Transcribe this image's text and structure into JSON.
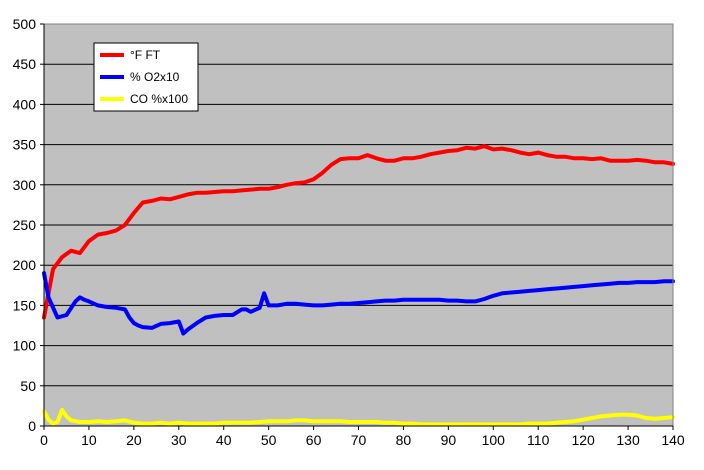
{
  "chart_data": {
    "type": "line",
    "title": "",
    "xlabel": "",
    "ylabel": "",
    "xlim": [
      0,
      140
    ],
    "ylim": [
      0,
      500
    ],
    "x_ticks": [
      0,
      10,
      20,
      30,
      40,
      50,
      60,
      70,
      80,
      90,
      100,
      110,
      120,
      130,
      140
    ],
    "y_ticks": [
      0,
      50,
      100,
      150,
      200,
      250,
      300,
      350,
      400,
      450,
      500
    ],
    "grid": "horizontal",
    "plot_background": "#C0C0C0",
    "legend_position": "top-left",
    "series": [
      {
        "name": "°F FT",
        "color": "#FF0000",
        "x": [
          0,
          2,
          4,
          6,
          8,
          10,
          12,
          14,
          16,
          18,
          20,
          22,
          24,
          26,
          28,
          30,
          32,
          34,
          36,
          38,
          40,
          42,
          44,
          46,
          48,
          50,
          52,
          54,
          56,
          58,
          60,
          62,
          64,
          66,
          68,
          70,
          72,
          74,
          76,
          78,
          80,
          82,
          84,
          86,
          88,
          90,
          92,
          94,
          96,
          98,
          100,
          102,
          104,
          106,
          108,
          110,
          112,
          114,
          116,
          118,
          120,
          122,
          124,
          126,
          128,
          130,
          132,
          134,
          136,
          138,
          140
        ],
        "y": [
          135,
          195,
          210,
          218,
          215,
          230,
          238,
          240,
          243,
          250,
          265,
          278,
          280,
          283,
          282,
          285,
          288,
          290,
          290,
          291,
          292,
          292,
          293,
          294,
          295,
          295,
          297,
          300,
          302,
          303,
          307,
          315,
          325,
          332,
          333,
          333,
          337,
          333,
          330,
          330,
          333,
          333,
          335,
          338,
          340,
          342,
          343,
          346,
          345,
          348,
          344,
          345,
          343,
          340,
          338,
          340,
          337,
          335,
          335,
          333,
          333,
          332,
          333,
          330,
          330,
          330,
          331,
          330,
          328,
          328,
          326
        ]
      },
      {
        "name": "% O2x10",
        "color": "#0000FF",
        "x": [
          0,
          1,
          3,
          5,
          7,
          8,
          9,
          10,
          12,
          14,
          16,
          18,
          19,
          20,
          21,
          22,
          24,
          26,
          28,
          30,
          31,
          32,
          34,
          36,
          38,
          40,
          42,
          44,
          45,
          46,
          48,
          49,
          50,
          52,
          54,
          56,
          58,
          60,
          62,
          64,
          66,
          68,
          70,
          72,
          74,
          76,
          78,
          80,
          82,
          84,
          86,
          88,
          90,
          92,
          94,
          96,
          98,
          100,
          102,
          104,
          106,
          108,
          110,
          112,
          114,
          116,
          118,
          120,
          122,
          124,
          126,
          128,
          130,
          132,
          134,
          136,
          138,
          140
        ],
        "y": [
          190,
          160,
          135,
          138,
          155,
          160,
          157,
          155,
          150,
          148,
          147,
          145,
          135,
          128,
          125,
          123,
          122,
          127,
          128,
          130,
          115,
          120,
          128,
          135,
          137,
          138,
          138,
          145,
          145,
          142,
          147,
          165,
          150,
          150,
          152,
          152,
          151,
          150,
          150,
          151,
          152,
          152,
          153,
          154,
          155,
          156,
          156,
          157,
          157,
          157,
          157,
          157,
          156,
          156,
          155,
          155,
          158,
          162,
          165,
          166,
          167,
          168,
          169,
          170,
          171,
          172,
          173,
          174,
          175,
          176,
          177,
          178,
          178,
          179,
          179,
          179,
          180,
          180
        ]
      },
      {
        "name": "CO %x100",
        "color": "#FFFF00",
        "x": [
          0,
          1,
          2,
          3,
          4,
          5,
          6,
          8,
          10,
          12,
          14,
          16,
          18,
          20,
          22,
          24,
          26,
          28,
          30,
          32,
          34,
          36,
          38,
          40,
          42,
          44,
          46,
          48,
          50,
          52,
          54,
          56,
          58,
          60,
          62,
          64,
          66,
          68,
          70,
          72,
          74,
          76,
          78,
          80,
          82,
          84,
          86,
          88,
          90,
          92,
          94,
          96,
          98,
          100,
          102,
          104,
          106,
          108,
          110,
          112,
          114,
          116,
          118,
          120,
          122,
          124,
          126,
          128,
          130,
          132,
          134,
          136,
          138,
          140
        ],
        "y": [
          18,
          8,
          3,
          5,
          20,
          12,
          7,
          5,
          5,
          6,
          5,
          6,
          7,
          4,
          3,
          3,
          4,
          3,
          4,
          3,
          3,
          3,
          3,
          4,
          4,
          4,
          4,
          5,
          6,
          6,
          6,
          7,
          7,
          6,
          6,
          6,
          6,
          5,
          5,
          5,
          5,
          4,
          4,
          3,
          3,
          2,
          2,
          2,
          2,
          2,
          2,
          2,
          2,
          2,
          2,
          2,
          2,
          3,
          3,
          3,
          4,
          5,
          6,
          8,
          10,
          12,
          13,
          14,
          14,
          13,
          10,
          9,
          10,
          11
        ]
      }
    ]
  }
}
